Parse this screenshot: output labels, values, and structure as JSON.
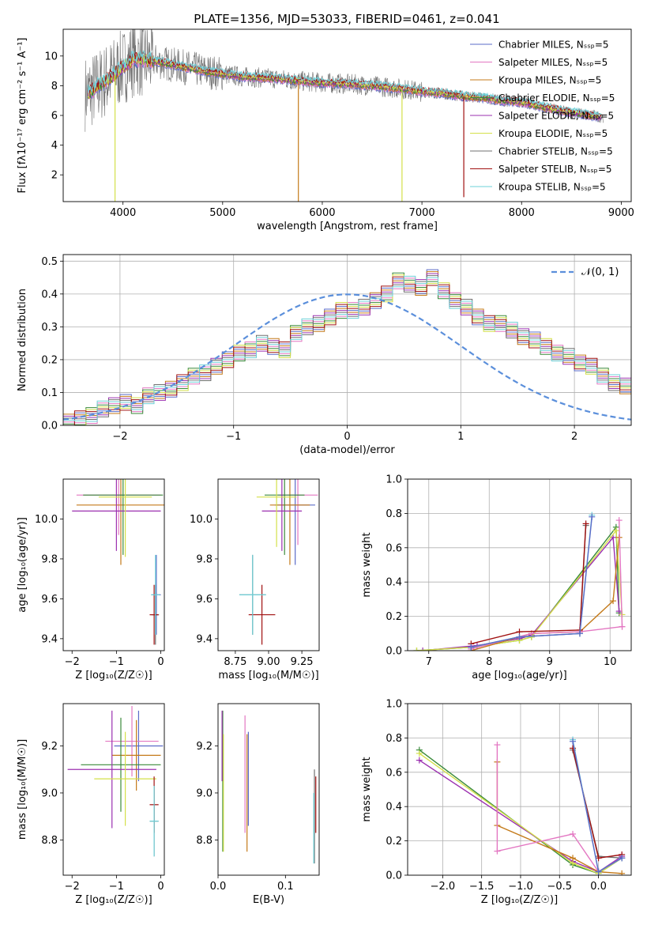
{
  "title": "PLATE=1356, MJD=53033, FIBERID=0461, z=0.041",
  "colors": {
    "Chabrier MILES": "#5b6bc8",
    "Salpeter MILES": "#e377c2",
    "Kroupa MILES": "#c47a1a",
    "Chabrier ELODIE": "#3a8a3a",
    "Salpeter ELODIE": "#9b30b0",
    "Kroupa ELODIE": "#d4e04a",
    "Chabrier STELIB": "#707070",
    "Salpeter STELIB": "#a01010",
    "Kroupa STELIB": "#6ed0d8",
    "Gaussian": "#5b8fdb"
  },
  "chart_data": [
    {
      "type": "line",
      "title": "PLATE=1356, MJD=53033, FIBERID=0461, z=0.041",
      "xlabel": "wavelength [Angstrom, rest frame]",
      "ylabel": "Flux [fλ10⁻¹⁷ erg cm⁻² s⁻¹ A⁻¹]",
      "xlim": [
        3400,
        9100
      ],
      "ylim": [
        0.2,
        11.8
      ],
      "xticks": [
        "4000",
        "5000",
        "6000",
        "7000",
        "8000",
        "9000"
      ],
      "yticks": [
        "2",
        "4",
        "6",
        "8",
        "10"
      ],
      "legend_position": "top-right",
      "legend": [
        "Chabrier MILES, Nₛₛₚ=5",
        "Salpeter MILES, Nₛₛₚ=5",
        "Kroupa MILES, Nₛₛₚ=5",
        "Chabrier ELODIE, Nₛₛₚ=5",
        "Salpeter ELODIE, Nₛₛₚ=5",
        "Kroupa ELODIE, Nₛₛₚ=5",
        "Chabrier STELIB, Nₛₛₚ=5",
        "Salpeter STELIB, Nₛₛₚ=5",
        "Kroupa STELIB, Nₛₛₚ=5"
      ],
      "continuum": {
        "x": [
          3650,
          3800,
          3950,
          4100,
          4300,
          4500,
          4800,
          5000,
          5200,
          5500,
          5800,
          6000,
          6300,
          6500,
          6800,
          7000,
          7200,
          7400,
          7600,
          7800,
          8000,
          8200,
          8400,
          8600,
          8800
        ],
        "y": [
          7.5,
          8.2,
          9.0,
          9.8,
          9.7,
          9.4,
          9.0,
          8.8,
          8.6,
          8.5,
          8.3,
          8.2,
          8.1,
          8.0,
          7.8,
          7.6,
          7.5,
          7.3,
          7.2,
          7.0,
          6.9,
          6.6,
          6.3,
          6.1,
          5.9
        ]
      },
      "gaps": [
        {
          "series": "Kroupa MILES",
          "x": 5760,
          "y_min": 0.2
        },
        {
          "series": "Kroupa ELODIE",
          "x": 3920,
          "y_min": 0.2
        },
        {
          "series": "Kroupa ELODIE",
          "x": 6800,
          "y_min": 0.2
        },
        {
          "series": "Salpeter STELIB",
          "x": 7420,
          "y_min": 0.5
        }
      ]
    },
    {
      "type": "bar",
      "xlabel": "(data-model)/error",
      "ylabel": "Normed distribution",
      "xlim": [
        -2.5,
        2.5
      ],
      "ylim": [
        0,
        0.52
      ],
      "xticks": [
        "−2",
        "−1",
        "0",
        "1",
        "2"
      ],
      "yticks": [
        "0.0",
        "0.1",
        "0.2",
        "0.3",
        "0.4",
        "0.5"
      ],
      "grid": true,
      "legend_position": "top-right",
      "legend": [
        "𝒩(0, 1)"
      ],
      "bin_width": 0.1,
      "bin_start": -2.5,
      "histogram": [
        0.01,
        0.02,
        0.03,
        0.05,
        0.06,
        0.07,
        0.06,
        0.09,
        0.1,
        0.11,
        0.13,
        0.15,
        0.16,
        0.18,
        0.2,
        0.22,
        0.23,
        0.25,
        0.24,
        0.23,
        0.28,
        0.3,
        0.31,
        0.33,
        0.35,
        0.35,
        0.36,
        0.38,
        0.4,
        0.44,
        0.43,
        0.42,
        0.45,
        0.41,
        0.38,
        0.36,
        0.33,
        0.31,
        0.31,
        0.29,
        0.27,
        0.26,
        0.24,
        0.22,
        0.21,
        0.19,
        0.18,
        0.15,
        0.13,
        0.12
      ]
    },
    {
      "type": "scatter",
      "xlabel": "Z [log₁₀(Z/Z☉)]",
      "ylabel": "age  [log₁₀(age/yr)]",
      "xlim": [
        -2.2,
        0.08
      ],
      "ylim": [
        9.34,
        10.2
      ],
      "xticks": [
        "−2",
        "−1",
        "0"
      ],
      "yticks": [
        "9.4",
        "9.6",
        "9.8",
        "10.0"
      ],
      "points": [
        {
          "series": "Chabrier MILES",
          "x": -0.1,
          "y": 9.62,
          "xerr": 0.1,
          "yerr": 0.2
        },
        {
          "series": "Salpeter MILES",
          "x": -0.95,
          "y": 10.12,
          "xerr": 0.95,
          "yerr": 0.2
        },
        {
          "series": "Kroupa MILES",
          "x": -0.9,
          "y": 10.07,
          "xerr": 1.0,
          "yerr": 0.3
        },
        {
          "series": "Chabrier ELODIE",
          "x": -0.85,
          "y": 10.12,
          "xerr": 0.9,
          "yerr": 0.3
        },
        {
          "series": "Salpeter ELODIE",
          "x": -1.0,
          "y": 10.04,
          "xerr": 1.0,
          "yerr": 0.2
        },
        {
          "series": "Kroupa ELODIE",
          "x": -0.8,
          "y": 10.11,
          "xerr": 0.6,
          "yerr": 0.3
        },
        {
          "series": "Chabrier STELIB",
          "x": -0.12,
          "y": 9.52,
          "xerr": 0.08,
          "yerr": 0.15
        },
        {
          "series": "Salpeter STELIB",
          "x": -0.15,
          "y": 9.52,
          "xerr": 0.1,
          "yerr": 0.15
        },
        {
          "series": "Kroupa STELIB",
          "x": -0.12,
          "y": 9.62,
          "xerr": 0.1,
          "yerr": 0.2
        }
      ]
    },
    {
      "type": "scatter",
      "xlabel": "mass [log₁₀(M/M☉)]",
      "ylabel": "",
      "xlim": [
        8.62,
        9.38
      ],
      "ylim": [
        9.34,
        10.2
      ],
      "xticks": [
        "8.75",
        "9.00",
        "9.25"
      ],
      "yticks": [
        "9.4",
        "9.6",
        "9.8",
        "10.0"
      ],
      "points": [
        {
          "series": "Chabrier MILES",
          "x": 9.2,
          "y": 10.07,
          "xerr": 0.15,
          "yerr": 0.3
        },
        {
          "series": "Salpeter MILES",
          "x": 9.22,
          "y": 10.12,
          "xerr": 0.15,
          "yerr": 0.25
        },
        {
          "series": "Kroupa MILES",
          "x": 9.16,
          "y": 10.07,
          "xerr": 0.15,
          "yerr": 0.3
        },
        {
          "series": "Chabrier ELODIE",
          "x": 9.12,
          "y": 10.12,
          "xerr": 0.15,
          "yerr": 0.3
        },
        {
          "series": "Salpeter ELODIE",
          "x": 9.1,
          "y": 10.04,
          "xerr": 0.15,
          "yerr": 0.2
        },
        {
          "series": "Kroupa ELODIE",
          "x": 9.06,
          "y": 10.11,
          "xerr": 0.15,
          "yerr": 0.25
        },
        {
          "series": "Chabrier STELIB",
          "x": 8.88,
          "y": 9.62,
          "xerr": 0.1,
          "yerr": 0.2
        },
        {
          "series": "Salpeter STELIB",
          "x": 8.95,
          "y": 9.52,
          "xerr": 0.1,
          "yerr": 0.15
        },
        {
          "series": "Kroupa STELIB",
          "x": 8.88,
          "y": 9.62,
          "xerr": 0.1,
          "yerr": 0.2
        }
      ]
    },
    {
      "type": "line",
      "xlabel": "age  [log₁₀(age/yr)]",
      "ylabel": "mass weight",
      "xlim": [
        6.65,
        10.35
      ],
      "ylim": [
        0,
        1
      ],
      "xticks": [
        "7",
        "8",
        "9",
        "10"
      ],
      "yticks": [
        "0.0",
        "0.2",
        "0.4",
        "0.6",
        "0.8",
        "1.0"
      ],
      "grid": true,
      "series": [
        {
          "name": "Chabrier ELODIE",
          "x": [
            6.8,
            7.7,
            8.5,
            8.7,
            10.1,
            10.15
          ],
          "y": [
            0.0,
            0.02,
            0.06,
            0.08,
            0.72,
            0.22
          ]
        },
        {
          "name": "Salpeter ELODIE",
          "x": [
            6.9,
            7.8,
            8.5,
            8.7,
            10.05,
            10.15
          ],
          "y": [
            0.0,
            0.03,
            0.07,
            0.09,
            0.66,
            0.23
          ]
        },
        {
          "name": "Kroupa ELODIE",
          "x": [
            6.8,
            7.7,
            8.5,
            8.7,
            10.1,
            10.2
          ],
          "y": [
            0.0,
            0.02,
            0.06,
            0.08,
            0.7,
            0.21
          ]
        },
        {
          "name": "Kroupa MILES",
          "x": [
            7.7,
            8.7,
            9.5,
            10.05,
            10.15
          ],
          "y": [
            0.0,
            0.1,
            0.11,
            0.29,
            0.66
          ]
        },
        {
          "name": "Salpeter MILES",
          "x": [
            7.7,
            8.7,
            9.5,
            10.2
          ],
          "y": [
            0.01,
            0.1,
            0.11,
            0.14
          ]
        },
        {
          "name": "Salpeter MILES",
          "x": [
            10.15,
            10.2
          ],
          "y": [
            0.76,
            0.14
          ]
        },
        {
          "name": "Chabrier STELIB",
          "x": [
            7.7,
            8.5,
            9.5,
            9.6
          ],
          "y": [
            0.02,
            0.08,
            0.1,
            0.73
          ]
        },
        {
          "name": "Salpeter STELIB",
          "x": [
            7.7,
            8.5,
            9.5,
            9.6
          ],
          "y": [
            0.04,
            0.11,
            0.12,
            0.74
          ]
        },
        {
          "name": "Kroupa STELIB",
          "x": [
            7.7,
            8.5,
            9.5,
            9.7
          ],
          "y": [
            0.02,
            0.08,
            0.1,
            0.79
          ]
        },
        {
          "name": "Chabrier MILES",
          "x": [
            7.7,
            8.5,
            9.5,
            9.7
          ],
          "y": [
            0.02,
            0.08,
            0.1,
            0.78
          ]
        }
      ]
    },
    {
      "type": "scatter",
      "xlabel": "Z [log₁₀(Z/Z☉)]",
      "ylabel": "mass [log₁₀(M/M☉)]",
      "xlim": [
        -2.2,
        0.08
      ],
      "ylim": [
        8.65,
        9.38
      ],
      "xticks": [
        "−2",
        "−1",
        "0"
      ],
      "yticks": [
        "8.8",
        "9.0",
        "9.2"
      ],
      "points": [
        {
          "series": "Chabrier MILES",
          "x": -0.5,
          "y": 9.2,
          "xerr": 0.55,
          "yerr": 0.15
        },
        {
          "series": "Salpeter MILES",
          "x": -0.65,
          "y": 9.22,
          "xerr": 0.6,
          "yerr": 0.15
        },
        {
          "series": "Kroupa MILES",
          "x": -0.55,
          "y": 9.16,
          "xerr": 0.55,
          "yerr": 0.15
        },
        {
          "series": "Chabrier ELODIE",
          "x": -0.9,
          "y": 9.12,
          "xerr": 0.9,
          "yerr": 0.2
        },
        {
          "series": "Salpeter ELODIE",
          "x": -1.1,
          "y": 9.1,
          "xerr": 1.0,
          "yerr": 0.25
        },
        {
          "series": "Kroupa ELODIE",
          "x": -0.8,
          "y": 9.06,
          "xerr": 0.7,
          "yerr": 0.2
        },
        {
          "series": "Chabrier STELIB",
          "x": -0.15,
          "y": 8.88,
          "xerr": 0.1,
          "yerr": 0.15
        },
        {
          "series": "Salpeter STELIB",
          "x": -0.15,
          "y": 8.95,
          "xerr": 0.1,
          "yerr": 0.12
        },
        {
          "series": "Kroupa STELIB",
          "x": -0.15,
          "y": 8.88,
          "xerr": 0.1,
          "yerr": 0.15
        }
      ]
    },
    {
      "type": "scatter",
      "xlabel": "E(B-V)",
      "ylabel": "",
      "xlim": [
        0,
        0.15
      ],
      "ylim": [
        8.65,
        9.38
      ],
      "xticks": [
        "0.0",
        "0.1"
      ],
      "yticks": [
        "8.8",
        "9.0",
        "9.2"
      ],
      "points": [
        {
          "series": "Chabrier MILES",
          "x": 0.045,
          "y": 9.06,
          "yerr": 0.2
        },
        {
          "series": "Salpeter MILES",
          "x": 0.04,
          "y": 9.08,
          "yerr": 0.25
        },
        {
          "series": "Kroupa MILES",
          "x": 0.043,
          "y": 9.0,
          "yerr": 0.25
        },
        {
          "series": "Chabrier ELODIE",
          "x": 0.007,
          "y": 9.05,
          "yerr": 0.3
        },
        {
          "series": "Salpeter ELODIE",
          "x": 0.006,
          "y": 9.2,
          "yerr": 0.15
        },
        {
          "series": "Kroupa ELODIE",
          "x": 0.008,
          "y": 9.0,
          "yerr": 0.25
        },
        {
          "series": "Chabrier STELIB",
          "x": 0.143,
          "y": 8.9,
          "yerr": 0.2
        },
        {
          "series": "Salpeter STELIB",
          "x": 0.145,
          "y": 8.95,
          "yerr": 0.12
        },
        {
          "series": "Kroupa STELIB",
          "x": 0.142,
          "y": 8.85,
          "yerr": 0.15
        }
      ]
    },
    {
      "type": "line",
      "xlabel": "Z [log₁₀(Z/Z☉)]",
      "ylabel": "mass weight",
      "xlim": [
        -2.45,
        0.42
      ],
      "ylim": [
        0,
        1
      ],
      "xticks": [
        "−2.0",
        "−1.5",
        "−1.0",
        "−0.5",
        "0.0"
      ],
      "yticks": [
        "0.0",
        "0.2",
        "0.4",
        "0.6",
        "0.8",
        "1.0"
      ],
      "grid": true,
      "series": [
        {
          "name": "Chabrier ELODIE",
          "x": [
            -2.3,
            -0.33,
            0.0,
            0.3
          ],
          "y": [
            0.73,
            0.06,
            0.01,
            0.1
          ]
        },
        {
          "name": "Salpeter ELODIE",
          "x": [
            -2.3,
            -0.33,
            0.0,
            0.3
          ],
          "y": [
            0.67,
            0.08,
            0.02,
            0.11
          ]
        },
        {
          "name": "Kroupa ELODIE",
          "x": [
            -2.3,
            -0.33,
            0.0,
            0.3
          ],
          "y": [
            0.71,
            0.07,
            0.01,
            0.1
          ]
        },
        {
          "name": "Kroupa MILES",
          "x": [
            -1.3,
            -1.3,
            -0.33,
            0.0,
            0.3
          ],
          "y": [
            0.66,
            0.29,
            0.1,
            0.02,
            0.01
          ]
        },
        {
          "name": "Salpeter MILES",
          "x": [
            -1.3,
            -1.3,
            -0.33,
            0.0,
            0.3
          ],
          "y": [
            0.76,
            0.14,
            0.24,
            0.02,
            0.1
          ]
        },
        {
          "name": "Chabrier STELIB",
          "x": [
            -0.33,
            0.0,
            0.3
          ],
          "y": [
            0.73,
            0.11,
            0.1
          ]
        },
        {
          "name": "Salpeter STELIB",
          "x": [
            -0.33,
            0.0,
            0.3
          ],
          "y": [
            0.74,
            0.1,
            0.12
          ]
        },
        {
          "name": "Kroupa STELIB",
          "x": [
            -0.33,
            0.0,
            0.3
          ],
          "y": [
            0.79,
            0.02,
            0.1
          ]
        },
        {
          "name": "Chabrier MILES",
          "x": [
            -0.33,
            0.0,
            0.3
          ],
          "y": [
            0.78,
            0.02,
            0.1
          ]
        }
      ]
    }
  ]
}
